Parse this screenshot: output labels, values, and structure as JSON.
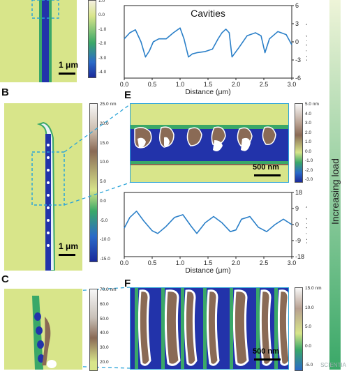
{
  "panels": {
    "B": "B",
    "C": "C",
    "E": "E",
    "F": "F"
  },
  "colors": {
    "background_height": "#d8e58a",
    "groove_dark": "#2233aa",
    "line_profile": "#2a7fc8",
    "dashed_box": "#2aa3d8",
    "ridge_brown": "#8a6a55",
    "ridge_white": "#ffffff"
  },
  "scale_bars": {
    "top_left": "1 μm",
    "B": "1 μm",
    "E": "500 nm",
    "F": "500 nm"
  },
  "colorbars": {
    "top": {
      "ticks": [
        "1.0",
        "0.0",
        "-1.0",
        "-2.0",
        "-3.0",
        "-4.0"
      ]
    },
    "B": {
      "ticks": [
        "25.0 nm",
        "20.0",
        "15.0",
        "10.0",
        "5.0",
        "0.0",
        "-5.0",
        "-10.0",
        "-15.0"
      ]
    },
    "C": {
      "ticks": [
        "70.0 nm",
        "60.0",
        "50.0",
        "40.0",
        "30.0",
        "20.0"
      ]
    },
    "E": {
      "ticks": [
        "5.0 nm",
        "4.0",
        "3.0",
        "2.0",
        "1.0",
        "0.0",
        "-1.0",
        "-2.0",
        "-3.0"
      ]
    },
    "F": {
      "ticks": [
        "15.0 nm",
        "10.0",
        "5.0",
        "0.0",
        "-5.0"
      ]
    }
  },
  "side_label": "Increasing load",
  "watermark": "SCIENTIA",
  "chart_data": [
    {
      "type": "line",
      "title": "Cavities",
      "xlabel": "Distance (μm)",
      "ylabel": "Height (nm)",
      "xlim": [
        0.0,
        3.0
      ],
      "ylim": [
        -6,
        6
      ],
      "xticks": [
        "0.0",
        "0.5",
        "1.0",
        "1.5",
        "2.0",
        "2.5",
        "3.0"
      ],
      "yticks": [
        "6",
        "3",
        "0",
        "-3",
        "-6"
      ],
      "series": [
        {
          "x": [
            0.0,
            0.1,
            0.2,
            0.3,
            0.38,
            0.45,
            0.52,
            0.62,
            0.75,
            0.88,
            1.0,
            1.07,
            1.15,
            1.22,
            1.3,
            1.45,
            1.58,
            1.68,
            1.75,
            1.82,
            1.88,
            1.93,
            2.05,
            2.2,
            2.35,
            2.45,
            2.52,
            2.6,
            2.75,
            2.9,
            3.0
          ],
          "y": [
            0.5,
            1.5,
            2.0,
            0.0,
            -2.5,
            -1.5,
            0.0,
            0.5,
            0.5,
            1.5,
            2.3,
            0.5,
            -2.5,
            -2.0,
            -1.8,
            -1.6,
            -1.2,
            0.5,
            1.5,
            2.1,
            1.5,
            -2.5,
            -1.0,
            1.0,
            1.5,
            1.0,
            -1.8,
            0.5,
            1.7,
            1.2,
            -0.5
          ]
        }
      ]
    },
    {
      "type": "line",
      "xlabel": "Distance (μm)",
      "ylabel": "Height (nm)",
      "xlim": [
        0.0,
        3.0
      ],
      "ylim": [
        -18,
        18
      ],
      "xticks": [
        "0.0",
        "0.5",
        "1.0",
        "1.5",
        "2.0",
        "2.5",
        "3.0"
      ],
      "yticks": [
        "18",
        "9",
        "0",
        "-9",
        "-18"
      ],
      "series": [
        {
          "x": [
            0.0,
            0.1,
            0.22,
            0.35,
            0.5,
            0.6,
            0.75,
            0.9,
            1.05,
            1.2,
            1.3,
            1.45,
            1.6,
            1.75,
            1.9,
            2.0,
            2.1,
            2.25,
            2.4,
            2.55,
            2.7,
            2.85,
            3.0
          ],
          "y": [
            -2,
            4,
            7.5,
            2,
            -3.5,
            -5,
            -1,
            4,
            5.5,
            -1,
            -5,
            1,
            4.5,
            1,
            -4,
            -3,
            3,
            4.5,
            -1.5,
            -4,
            0,
            3,
            0
          ]
        }
      ]
    }
  ]
}
